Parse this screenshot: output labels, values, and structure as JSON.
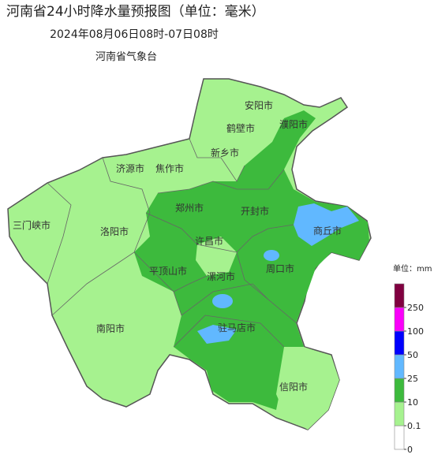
{
  "header": {
    "title": "河南省24小时降水量预报图（单位：毫米）",
    "subtitle": "2024年08月06日08时-07日08时",
    "agency": "河南省气象台"
  },
  "map": {
    "labels": [
      "安阳市",
      "鹤壁市",
      "濮阳市",
      "新乡市",
      "济源市",
      "焦作市",
      "三门峡市",
      "郑州市",
      "开封市",
      "洛阳市",
      "商丘市",
      "许昌市",
      "平顶山市",
      "漯河市",
      "周口市",
      "南阳市",
      "驻马店市",
      "信阳市"
    ]
  },
  "legend": {
    "unit": "单位：mm",
    "ticks": [
      0,
      0.1,
      10,
      25,
      50,
      100,
      250
    ],
    "colors": [
      "#ffffff",
      "#a6f28f",
      "#3dba3d",
      "#61b8ff",
      "#0000fe",
      "#fa00fa",
      "#800040"
    ]
  }
}
